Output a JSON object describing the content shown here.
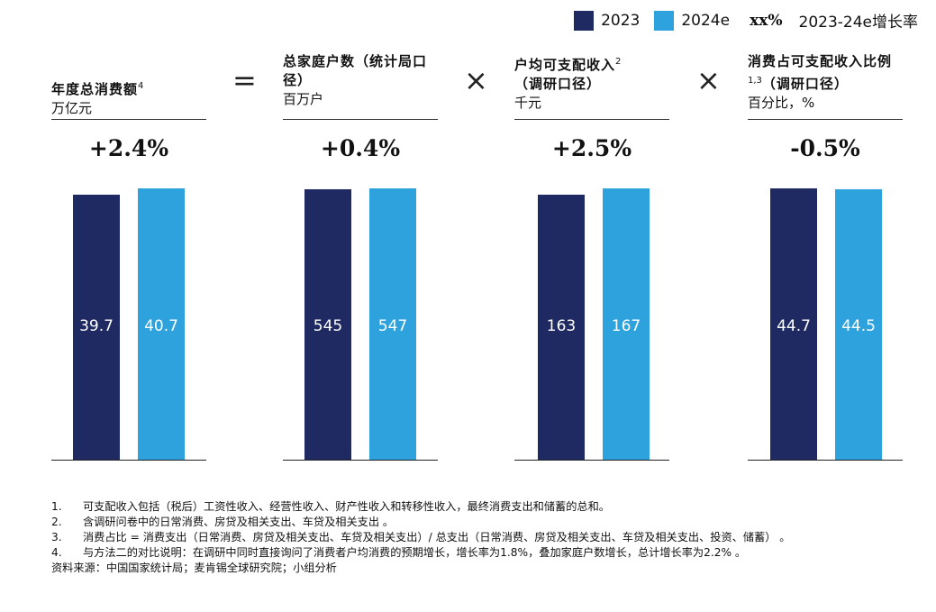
{
  "legend": {
    "series_2023": "2023",
    "series_2024": "2024e",
    "growth_marker": "xx%",
    "growth_label": "2023-24e增长率",
    "colors": {
      "y2023": "#1f2a63",
      "y2024": "#2ea2dd"
    }
  },
  "operators": {
    "equals": "=",
    "times": "×"
  },
  "chart_data": [
    {
      "type": "bar",
      "title": "年度总消费额",
      "title_sup": "4",
      "ylabel": "万亿元",
      "categories": [
        "2023",
        "2024e"
      ],
      "values": [
        39.7,
        40.7
      ],
      "value_labels": [
        "39.7",
        "40.7"
      ],
      "growth": "+2.4%"
    },
    {
      "type": "bar",
      "title": "总家庭户数（统计局口径）",
      "title_sup": "",
      "ylabel": "百万户",
      "categories": [
        "2023",
        "2024e"
      ],
      "values": [
        545,
        547
      ],
      "value_labels": [
        "545",
        "547"
      ],
      "growth": "+0.4%"
    },
    {
      "type": "bar",
      "title": "户均可支配收入",
      "title_sup": "2",
      "title_line2": "（调研口径）",
      "ylabel": "千元",
      "categories": [
        "2023",
        "2024e"
      ],
      "values": [
        163,
        167
      ],
      "value_labels": [
        "163",
        "167"
      ],
      "growth": "+2.5%"
    },
    {
      "type": "bar",
      "title": "消费占可支配收入比例",
      "title_sup": "1,3",
      "title_line2": "（调研口径）",
      "ylabel": "百分比，%",
      "categories": [
        "2023",
        "2024e"
      ],
      "values": [
        44.7,
        44.5
      ],
      "value_labels": [
        "44.7",
        "44.5"
      ],
      "growth": "-0.5%"
    }
  ],
  "notes": [
    {
      "num": "1.",
      "text": "可支配收入包括（税后）工资性收入、经营性收入、财产性收入和转移性收入，最终消费支出和储蓄的总和。"
    },
    {
      "num": "2.",
      "text": "含调研问卷中的日常消费、房贷及相关支出、车贷及相关支出 。"
    },
    {
      "num": "3.",
      "text": "消费占比 = 消费支出（日常消费、房贷及相关支出、车贷及相关支出）/ 总支出（日常消费、房贷及相关支出、车贷及相关支出、投资、储蓄） 。"
    },
    {
      "num": "4.",
      "text": "与方法二的对比说明：在调研中同时直接询问了消费者户均消费的预期增长，增长率为1.8%，叠加家庭户数增长，总计增长率为2.2% 。"
    }
  ],
  "source": "资料来源：中国国家统计局；麦肯锡全球研究院；小组分析"
}
